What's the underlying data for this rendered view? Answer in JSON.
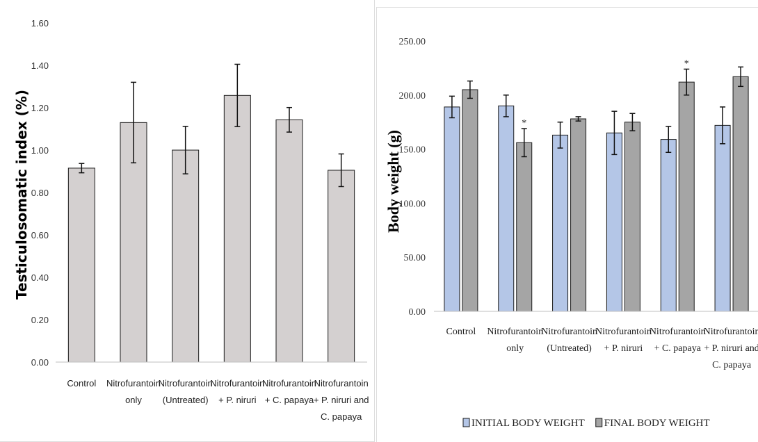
{
  "chart_data": [
    {
      "type": "bar",
      "title": "",
      "xlabel": "",
      "ylabel": "Testiculosomatic index (%)",
      "ylim": [
        0,
        1.6
      ],
      "yticks": [
        "0.00",
        "0.20",
        "0.40",
        "0.60",
        "0.80",
        "1.00",
        "1.20",
        "1.40",
        "1.60"
      ],
      "categories": [
        [
          "Control"
        ],
        [
          "Nitrofurantoin",
          "only"
        ],
        [
          "Nitrofurantoin",
          "(Untreated)"
        ],
        [
          "Nitrofurantoin",
          "+ P. niruri"
        ],
        [
          "Nitrofurantoin",
          "+ C. papaya"
        ],
        [
          "Nitrofurantoin",
          "+ P. niruri and",
          "C. papaya"
        ]
      ],
      "series": [
        {
          "values": [
            0.915,
            1.13,
            1.0,
            1.258,
            1.143,
            0.905
          ],
          "errors": [
            0.022,
            0.19,
            0.112,
            0.147,
            0.058,
            0.077
          ],
          "color": "#d4d0d0"
        }
      ],
      "grid": false,
      "legend": "none"
    },
    {
      "type": "bar",
      "title": "",
      "xlabel": "",
      "ylabel": "Body weight (g)",
      "ylim": [
        0,
        250
      ],
      "yticks": [
        "0.00",
        "50.00",
        "100.00",
        "150.00",
        "200.00",
        "250.00"
      ],
      "categories": [
        [
          "Control"
        ],
        [
          "Nitrofurantoin",
          "only"
        ],
        [
          "Nitrofurantoin",
          "(Untreated)"
        ],
        [
          "Nitrofurantoin",
          "+ P. niruri"
        ],
        [
          "Nitrofurantoin",
          "+ C. papaya"
        ],
        [
          "Nitrofurantoin",
          "+ P. niruri and",
          "C. papaya"
        ]
      ],
      "series": [
        {
          "name": "INITIAL BODY WEIGHT",
          "values": [
            189,
            190,
            163,
            165,
            159,
            172
          ],
          "errors": [
            10,
            10,
            12,
            20,
            12,
            17
          ],
          "color": "#b4c6e7",
          "significance": [
            false,
            false,
            false,
            false,
            false,
            false
          ]
        },
        {
          "name": "FINAL BODY WEIGHT",
          "values": [
            205,
            156,
            178,
            175,
            212,
            217
          ],
          "errors": [
            8,
            13,
            2,
            8,
            12,
            9
          ],
          "color": "#a5a5a5",
          "significance": [
            false,
            true,
            false,
            false,
            true,
            false
          ]
        }
      ],
      "significance_marker": "*",
      "grid": false,
      "legend": "bottom"
    }
  ]
}
